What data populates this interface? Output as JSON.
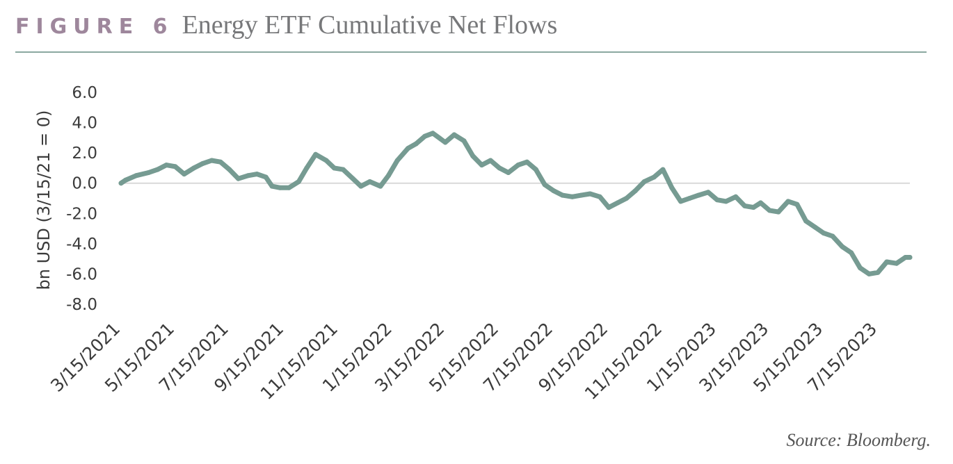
{
  "header": {
    "figure_label": "FIGURE 6",
    "title": "Energy ETF Cumulative Net Flows"
  },
  "source": "Source: Bloomberg.",
  "colors": {
    "line": "#769b92",
    "figure_label": "#9e879c",
    "title": "#77787a",
    "zero_line": "#d9d9d9",
    "rule": "#8aa8a0"
  },
  "chart_data": {
    "type": "line",
    "ylabel": "bn USD (3/15/21 = 0)",
    "ylim": [
      -8,
      6
    ],
    "yticks": [
      6,
      4,
      2,
      0,
      -2,
      -4,
      -6,
      -8
    ],
    "ytick_labels": [
      "6.0",
      "4.0",
      "2.0",
      "0.0",
      "-2.0",
      "-4.0",
      "-6.0",
      "-8.0"
    ],
    "xlim": [
      "2021-03-15",
      "2023-08-20"
    ],
    "xticks": [
      "2021-03-15",
      "2021-05-15",
      "2021-07-15",
      "2021-09-15",
      "2021-11-15",
      "2022-01-15",
      "2022-03-15",
      "2022-05-15",
      "2022-07-15",
      "2022-09-15",
      "2022-11-15",
      "2023-01-15",
      "2023-03-15",
      "2023-05-15",
      "2023-07-15"
    ],
    "xtick_labels": [
      "3/15/2021",
      "5/15/2021",
      "7/15/2021",
      "9/15/2021",
      "11/15/2021",
      "1/15/2022",
      "3/15/2022",
      "5/15/2022",
      "7/15/2022",
      "9/15/2022",
      "11/15/2022",
      "1/15/2023",
      "3/15/2023",
      "5/15/2023",
      "7/15/2023"
    ],
    "grid": false,
    "legend": "none",
    "series": [
      {
        "x": [
          "2021-03-15",
          "2021-03-20",
          "2021-04-01",
          "2021-04-15",
          "2021-04-25",
          "2021-05-05",
          "2021-05-15",
          "2021-05-25",
          "2021-06-05",
          "2021-06-15",
          "2021-06-25",
          "2021-07-05",
          "2021-07-15",
          "2021-07-25",
          "2021-08-05",
          "2021-08-15",
          "2021-08-25",
          "2021-09-01",
          "2021-09-10",
          "2021-09-20",
          "2021-10-01",
          "2021-10-10",
          "2021-10-20",
          "2021-11-01",
          "2021-11-10",
          "2021-11-20",
          "2021-12-01",
          "2021-12-10",
          "2021-12-20",
          "2022-01-01",
          "2022-01-10",
          "2022-01-20",
          "2022-02-01",
          "2022-02-10",
          "2022-02-20",
          "2022-03-01",
          "2022-03-15",
          "2022-03-25",
          "2022-04-05",
          "2022-04-15",
          "2022-04-25",
          "2022-05-05",
          "2022-05-15",
          "2022-05-25",
          "2022-06-05",
          "2022-06-15",
          "2022-06-25",
          "2022-07-05",
          "2022-07-15",
          "2022-07-25",
          "2022-08-05",
          "2022-08-15",
          "2022-08-25",
          "2022-09-05",
          "2022-09-15",
          "2022-09-25",
          "2022-10-05",
          "2022-10-15",
          "2022-10-25",
          "2022-11-05",
          "2022-11-15",
          "2022-11-25",
          "2022-12-05",
          "2022-12-15",
          "2022-12-25",
          "2023-01-05",
          "2023-01-15",
          "2023-01-25",
          "2023-02-05",
          "2023-02-15",
          "2023-02-25",
          "2023-03-05",
          "2023-03-15",
          "2023-03-25",
          "2023-04-05",
          "2023-04-15",
          "2023-04-25",
          "2023-05-05",
          "2023-05-15",
          "2023-05-25",
          "2023-06-05",
          "2023-06-15",
          "2023-06-25",
          "2023-07-05",
          "2023-07-15",
          "2023-07-25",
          "2023-08-05",
          "2023-08-15",
          "2023-08-20"
        ],
        "values": [
          0.0,
          0.2,
          0.5,
          0.7,
          0.9,
          1.2,
          1.1,
          0.6,
          1.0,
          1.3,
          1.5,
          1.4,
          0.9,
          0.3,
          0.5,
          0.6,
          0.4,
          -0.2,
          -0.3,
          -0.3,
          0.1,
          1.0,
          1.9,
          1.5,
          1.0,
          0.9,
          0.3,
          -0.2,
          0.1,
          -0.2,
          0.5,
          1.5,
          2.3,
          2.6,
          3.1,
          3.3,
          2.7,
          3.2,
          2.8,
          1.8,
          1.2,
          1.5,
          1.0,
          0.7,
          1.2,
          1.4,
          0.9,
          -0.1,
          -0.5,
          -0.8,
          -0.9,
          -0.8,
          -0.7,
          -0.9,
          -1.6,
          -1.3,
          -1.0,
          -0.5,
          0.1,
          0.4,
          0.9,
          -0.3,
          -1.2,
          -1.0,
          -0.8,
          -0.6,
          -1.1,
          -1.2,
          -0.9,
          -1.5,
          -1.6,
          -1.3,
          -1.8,
          -1.9,
          -1.2,
          -1.4,
          -2.5,
          -2.9,
          -3.3,
          -3.5,
          -4.2,
          -4.6,
          -5.6,
          -6.0,
          -5.9,
          -5.2,
          -5.3,
          -4.9,
          -4.9
        ]
      }
    ]
  }
}
